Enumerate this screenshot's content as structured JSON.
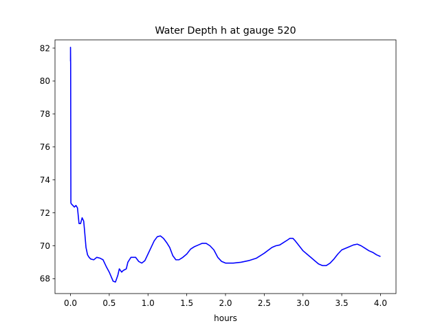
{
  "chart_data": {
    "type": "line",
    "title": "Water Depth h at gauge 520",
    "xlabel": "hours",
    "ylabel": "",
    "xlim": [
      -0.2,
      4.2
    ],
    "ylim": [
      67.1,
      82.5
    ],
    "xticks": [
      0.0,
      0.5,
      1.0,
      1.5,
      2.0,
      2.5,
      3.0,
      3.5,
      4.0
    ],
    "xtick_labels": [
      "0.0",
      "0.5",
      "1.0",
      "1.5",
      "2.0",
      "2.5",
      "3.0",
      "3.5",
      "4.0"
    ],
    "yticks": [
      68,
      70,
      72,
      74,
      76,
      78,
      80,
      82
    ],
    "ytick_labels": [
      "68",
      "70",
      "72",
      "74",
      "76",
      "78",
      "80",
      "82"
    ],
    "grid": false,
    "legend": "none",
    "series": [
      {
        "color": "#0000ff",
        "x": [
          0.0,
          0.0,
          0.002,
          0.002,
          0.005,
          0.01,
          0.03,
          0.05,
          0.07,
          0.09,
          0.11,
          0.13,
          0.15,
          0.17,
          0.18,
          0.2,
          0.22,
          0.24,
          0.26,
          0.3,
          0.34,
          0.38,
          0.42,
          0.46,
          0.5,
          0.55,
          0.58,
          0.61,
          0.63,
          0.66,
          0.68,
          0.7,
          0.72,
          0.74,
          0.76,
          0.78,
          0.8,
          0.84,
          0.88,
          0.92,
          0.96,
          1.0,
          1.04,
          1.08,
          1.12,
          1.16,
          1.2,
          1.24,
          1.28,
          1.32,
          1.36,
          1.4,
          1.45,
          1.5,
          1.55,
          1.6,
          1.65,
          1.7,
          1.75,
          1.8,
          1.85,
          1.9,
          1.95,
          2.0,
          2.05,
          2.1,
          2.2,
          2.3,
          2.4,
          2.5,
          2.6,
          2.65,
          2.7,
          2.75,
          2.8,
          2.83,
          2.87,
          2.9,
          2.95,
          3.0,
          3.05,
          3.1,
          3.15,
          3.2,
          3.25,
          3.3,
          3.35,
          3.4,
          3.45,
          3.5,
          3.55,
          3.6,
          3.65,
          3.7,
          3.75,
          3.8,
          3.85,
          3.9,
          3.95,
          4.0
        ],
        "y": [
          81.2,
          82.05,
          81.0,
          80.95,
          72.6,
          72.55,
          72.45,
          72.35,
          72.45,
          72.3,
          71.35,
          71.35,
          71.7,
          71.5,
          71.0,
          69.9,
          69.45,
          69.3,
          69.2,
          69.15,
          69.3,
          69.25,
          69.15,
          68.75,
          68.4,
          67.85,
          67.8,
          68.2,
          68.6,
          68.4,
          68.5,
          68.55,
          68.6,
          69.0,
          69.15,
          69.3,
          69.3,
          69.3,
          69.05,
          68.95,
          69.1,
          69.5,
          69.9,
          70.3,
          70.55,
          70.6,
          70.45,
          70.2,
          69.9,
          69.4,
          69.15,
          69.15,
          69.3,
          69.5,
          69.8,
          69.95,
          70.05,
          70.15,
          70.15,
          70.0,
          69.75,
          69.3,
          69.05,
          68.95,
          68.95,
          68.95,
          69.0,
          69.1,
          69.25,
          69.55,
          69.9,
          70.0,
          70.05,
          70.2,
          70.35,
          70.45,
          70.45,
          70.3,
          70.0,
          69.7,
          69.5,
          69.3,
          69.1,
          68.9,
          68.8,
          68.8,
          68.95,
          69.2,
          69.5,
          69.75,
          69.85,
          69.95,
          70.05,
          70.1,
          70.0,
          69.85,
          69.7,
          69.6,
          69.45,
          69.35
        ]
      }
    ]
  }
}
